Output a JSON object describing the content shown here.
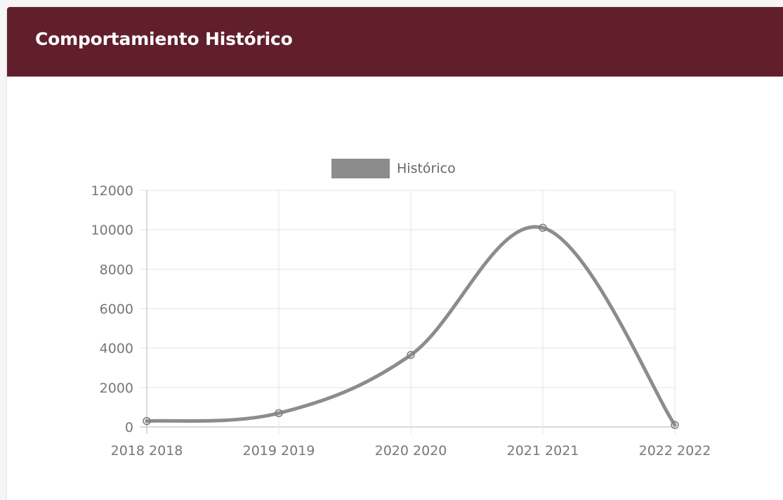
{
  "card": {
    "title": "Comportamiento Histórico"
  },
  "colors": {
    "header_bg": "#611f2c",
    "series_line": "#8c8c8c",
    "grid": "#e3e3e3",
    "tick_text": "#777777"
  },
  "chart_data": {
    "type": "line",
    "categories": [
      "2018 2018",
      "2019 2019",
      "2020 2020",
      "2021 2021",
      "2022 2022"
    ],
    "series": [
      {
        "name": "Histórico",
        "values": [
          300,
          700,
          3650,
          10100,
          100
        ]
      }
    ],
    "yticks": [
      0,
      2000,
      4000,
      6000,
      8000,
      10000,
      12000
    ],
    "ylim": [
      0,
      12000
    ],
    "legend_position": "top",
    "grid": true
  }
}
